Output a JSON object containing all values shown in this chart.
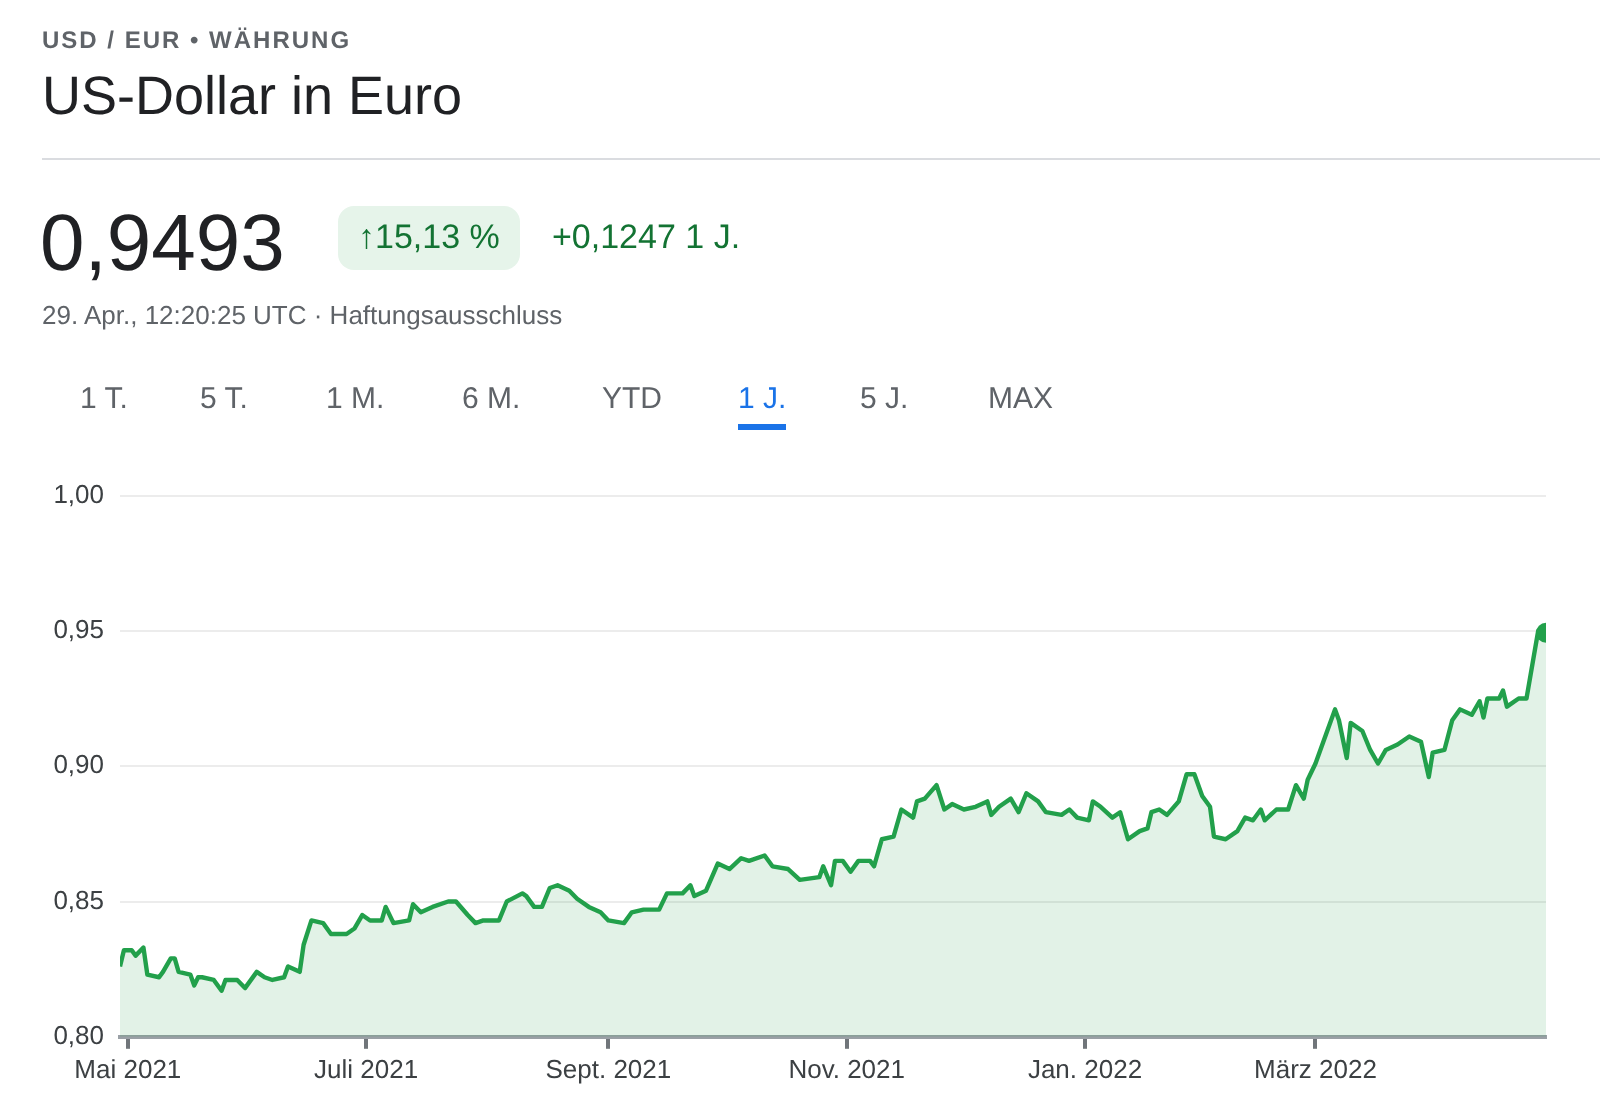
{
  "chart_data": {
    "type": "area",
    "subtitle": "USD / EUR • WÄHRUNG",
    "title": "US-Dollar in Euro",
    "annotations": [
      "0,9493",
      "↑15,13 %",
      "+0,1247 1 J.",
      "29. Apr., 12:20:25 UTC · Haftungsausschluss",
      "1 T.",
      "5 T.",
      "1 M.",
      "6 M.",
      "YTD",
      "1 J.",
      "5 J.",
      "MAX"
    ],
    "color": "#22a04b",
    "grid": "y",
    "xlim": [
      "2021-04-29",
      "2022-04-29"
    ],
    "xticks": [
      {
        "value": "2021-05-01",
        "label": "Mai 2021"
      },
      {
        "value": "2021-07-01",
        "label": "Juli 2021"
      },
      {
        "value": "2021-09-01",
        "label": "Sept. 2021"
      },
      {
        "value": "2021-11-01",
        "label": "Nov. 2021"
      },
      {
        "value": "2022-01-01",
        "label": "Jan. 2022"
      },
      {
        "value": "2022-03-01",
        "label": "März 2022"
      }
    ],
    "ylim": [
      0.8,
      1.0
    ],
    "yticks": [
      {
        "value": 0.8,
        "label": "0,80"
      },
      {
        "value": 0.85,
        "label": "0,85"
      },
      {
        "value": 0.9,
        "label": "0,90"
      },
      {
        "value": 0.95,
        "label": "0,95"
      },
      {
        "value": 1.0,
        "label": "1,00"
      }
    ],
    "x": [
      "2021-04-29",
      "2021-04-30",
      "2021-05-02",
      "2021-05-03",
      "2021-05-05",
      "2021-05-06",
      "2021-05-09",
      "2021-05-10",
      "2021-05-12",
      "2021-05-13",
      "2021-05-14",
      "2021-05-17",
      "2021-05-18",
      "2021-05-19",
      "2021-05-20",
      "2021-05-23",
      "2021-05-25",
      "2021-05-26",
      "2021-05-29",
      "2021-05-31",
      "2021-06-03",
      "2021-06-05",
      "2021-06-07",
      "2021-06-10",
      "2021-06-11",
      "2021-06-14",
      "2021-06-15",
      "2021-06-17",
      "2021-06-20",
      "2021-06-22",
      "2021-06-26",
      "2021-06-28",
      "2021-06-30",
      "2021-07-02",
      "2021-07-05",
      "2021-07-06",
      "2021-07-08",
      "2021-07-12",
      "2021-07-13",
      "2021-07-15",
      "2021-07-18",
      "2021-07-22",
      "2021-07-24",
      "2021-07-27",
      "2021-07-29",
      "2021-07-31",
      "2021-08-04",
      "2021-08-06",
      "2021-08-10",
      "2021-08-11",
      "2021-08-13",
      "2021-08-15",
      "2021-08-17",
      "2021-08-19",
      "2021-08-22",
      "2021-08-24",
      "2021-08-27",
      "2021-08-30",
      "2021-09-01",
      "2021-09-05",
      "2021-09-07",
      "2021-09-10",
      "2021-09-14",
      "2021-09-16",
      "2021-09-20",
      "2021-09-22",
      "2021-09-23",
      "2021-09-26",
      "2021-09-29",
      "2021-10-02",
      "2021-10-05",
      "2021-10-07",
      "2021-10-11",
      "2021-10-13",
      "2021-10-17",
      "2021-10-20",
      "2021-10-25",
      "2021-10-26",
      "2021-10-28",
      "2021-10-29",
      "2021-10-31",
      "2021-11-02",
      "2021-11-04",
      "2021-11-07",
      "2021-11-08",
      "2021-11-10",
      "2021-11-13",
      "2021-11-15",
      "2021-11-18",
      "2021-11-19",
      "2021-11-21",
      "2021-11-24",
      "2021-11-26",
      "2021-11-28",
      "2021-12-01",
      "2021-12-04",
      "2021-12-07",
      "2021-12-08",
      "2021-12-10",
      "2021-12-13",
      "2021-12-15",
      "2021-12-17",
      "2021-12-20",
      "2021-12-22",
      "2021-12-26",
      "2021-12-28",
      "2021-12-30",
      "2022-01-02",
      "2022-01-03",
      "2022-01-05",
      "2022-01-08",
      "2022-01-10",
      "2022-01-12",
      "2022-01-15",
      "2022-01-17",
      "2022-01-18",
      "2022-01-20",
      "2022-01-22",
      "2022-01-25",
      "2022-01-27",
      "2022-01-29",
      "2022-01-31",
      "2022-02-02",
      "2022-02-03",
      "2022-02-06",
      "2022-02-09",
      "2022-02-11",
      "2022-02-13",
      "2022-02-15",
      "2022-02-16",
      "2022-02-19",
      "2022-02-22",
      "2022-02-24",
      "2022-02-26",
      "2022-02-27",
      "2022-03-01",
      "2022-03-04",
      "2022-03-06",
      "2022-03-07",
      "2022-03-09",
      "2022-03-10",
      "2022-03-13",
      "2022-03-15",
      "2022-03-17",
      "2022-03-19",
      "2022-03-22",
      "2022-03-25",
      "2022-03-28",
      "2022-03-30",
      "2022-03-31",
      "2022-04-03",
      "2022-04-05",
      "2022-04-07",
      "2022-04-10",
      "2022-04-12",
      "2022-04-13",
      "2022-04-14",
      "2022-04-17",
      "2022-04-18",
      "2022-04-19",
      "2022-04-22",
      "2022-04-24",
      "2022-04-27",
      "2022-04-29"
    ],
    "values": [
      0.826,
      0.832,
      0.832,
      0.83,
      0.833,
      0.823,
      0.822,
      0.824,
      0.829,
      0.829,
      0.824,
      0.823,
      0.819,
      0.822,
      0.822,
      0.821,
      0.817,
      0.821,
      0.821,
      0.818,
      0.824,
      0.822,
      0.821,
      0.822,
      0.826,
      0.824,
      0.834,
      0.843,
      0.842,
      0.838,
      0.838,
      0.84,
      0.845,
      0.843,
      0.843,
      0.848,
      0.842,
      0.843,
      0.849,
      0.846,
      0.848,
      0.85,
      0.85,
      0.845,
      0.842,
      0.843,
      0.843,
      0.85,
      0.853,
      0.852,
      0.848,
      0.848,
      0.855,
      0.856,
      0.854,
      0.851,
      0.848,
      0.846,
      0.843,
      0.842,
      0.846,
      0.847,
      0.847,
      0.853,
      0.853,
      0.856,
      0.852,
      0.854,
      0.864,
      0.862,
      0.866,
      0.865,
      0.867,
      0.863,
      0.862,
      0.858,
      0.859,
      0.863,
      0.856,
      0.865,
      0.865,
      0.861,
      0.865,
      0.865,
      0.863,
      0.873,
      0.874,
      0.884,
      0.881,
      0.887,
      0.888,
      0.893,
      0.884,
      0.886,
      0.884,
      0.885,
      0.887,
      0.882,
      0.885,
      0.888,
      0.883,
      0.89,
      0.887,
      0.883,
      0.882,
      0.884,
      0.881,
      0.88,
      0.887,
      0.885,
      0.881,
      0.883,
      0.873,
      0.876,
      0.877,
      0.883,
      0.884,
      0.882,
      0.887,
      0.897,
      0.897,
      0.889,
      0.885,
      0.874,
      0.873,
      0.876,
      0.881,
      0.88,
      0.884,
      0.88,
      0.884,
      0.884,
      0.893,
      0.888,
      0.895,
      0.901,
      0.913,
      0.921,
      0.917,
      0.903,
      0.916,
      0.913,
      0.906,
      0.901,
      0.906,
      0.908,
      0.911,
      0.909,
      0.896,
      0.905,
      0.906,
      0.917,
      0.921,
      0.919,
      0.924,
      0.918,
      0.925,
      0.925,
      0.928,
      0.922,
      0.925,
      0.925,
      0.95,
      0.9493
    ]
  }
}
